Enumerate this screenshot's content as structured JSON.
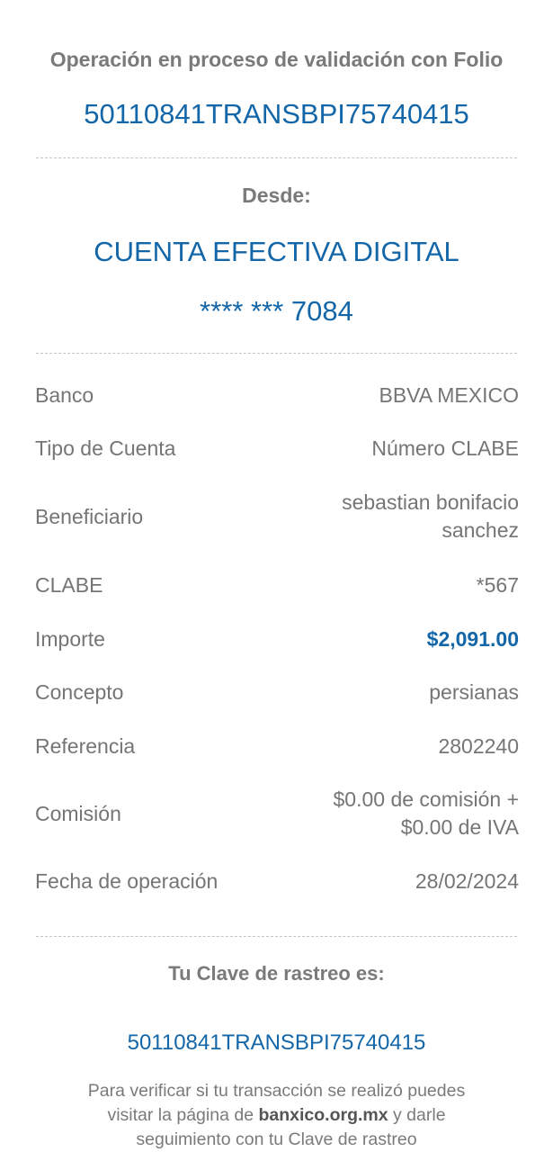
{
  "header": {
    "status": "Operación en proceso de validación con Folio",
    "folio": "50110841TRANSBPI75740415"
  },
  "origin": {
    "label": "Desde:",
    "account_name": "CUENTA EFECTIVA DIGITAL",
    "account_mask": "**** *** 7084"
  },
  "details": [
    {
      "label": "Banco",
      "value": "BBVA MEXICO"
    },
    {
      "label": "Tipo de Cuenta",
      "value": "Número CLABE"
    },
    {
      "label": "Beneficiario",
      "value": "sebastian bonifacio",
      "value2": "sanchez"
    },
    {
      "label": "CLABE",
      "value": "*567"
    },
    {
      "label": "Importe",
      "value": "$2,091.00"
    },
    {
      "label": "Concepto",
      "value": "persianas"
    },
    {
      "label": "Referencia",
      "value": "2802240"
    },
    {
      "label": "Comisión",
      "value": "$0.00 de comisión +",
      "value2": "$0.00 de IVA"
    },
    {
      "label": "Fecha de operación",
      "value": "28/02/2024"
    }
  ],
  "tracking": {
    "label": "Tu Clave de rastreo es:",
    "code": "50110841TRANSBPI75740415"
  },
  "footer": {
    "text1": "Para verificar si tu transacción se realizó puedes",
    "text2a": "visitar la página de",
    "link": "banxico.org.mx",
    "text2b": "y darle",
    "text3": "seguimiento con tu Clave de rastreo"
  },
  "colors": {
    "accent": "#1366a8",
    "text": "#757575"
  }
}
